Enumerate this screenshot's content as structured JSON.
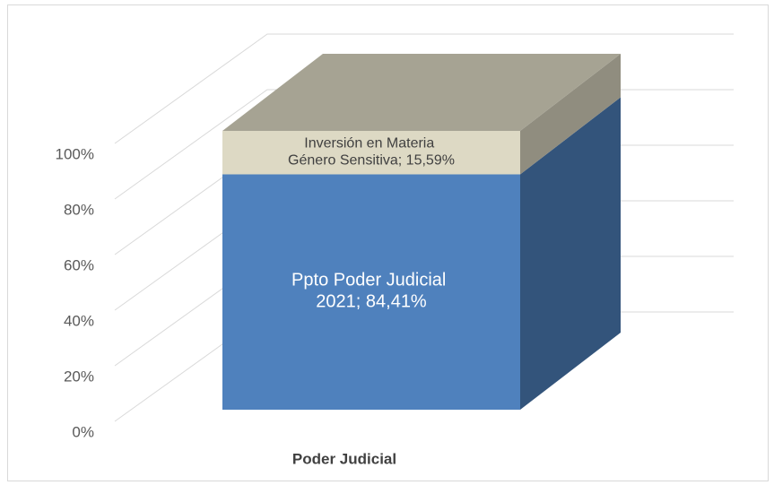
{
  "chart_data": {
    "type": "bar3d_stacked",
    "categories": [
      "Poder Judicial"
    ],
    "series": [
      {
        "color": "#4f81bd",
        "values": [
          84.41
        ],
        "value_labels": [
          "Ppto Poder Judicial 2021; 84,41%"
        ]
      },
      {
        "color": "#ddd9c4",
        "values": [
          15.59
        ],
        "value_labels": [
          "Inversión en Materia Género Sensitiva; 15,59%"
        ]
      }
    ],
    "ylim": [
      0,
      100
    ],
    "yticks": [
      {
        "value": 0,
        "label": "0%"
      },
      {
        "value": 20,
        "label": "20%"
      },
      {
        "value": 40,
        "label": "40%"
      },
      {
        "value": 60,
        "label": "60%"
      },
      {
        "value": 80,
        "label": "80%"
      },
      {
        "value": 100,
        "label": "100%"
      }
    ],
    "grid": true
  }
}
